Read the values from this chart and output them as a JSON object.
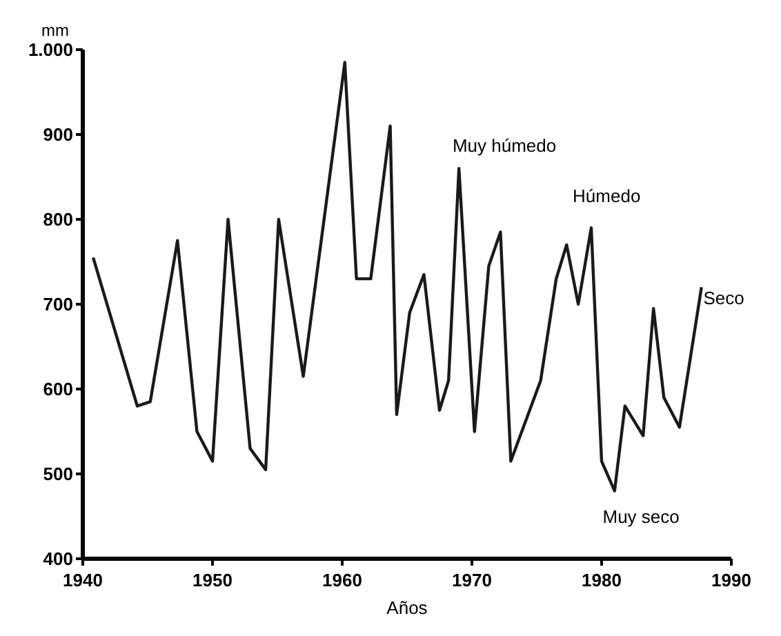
{
  "chart_data": {
    "type": "line",
    "xlabel": "Años",
    "ylabel": "mm",
    "x": [
      1940.8,
      1944.2,
      1945.2,
      1947.3,
      1948.8,
      1950,
      1951.2,
      1952.9,
      1954.1,
      1955.1,
      1957,
      1960.2,
      1961.1,
      1962.2,
      1963.7,
      1964.2,
      1965.2,
      1966.3,
      1967.5,
      1968.2,
      1969,
      1970.2,
      1971.3,
      1972.2,
      1973,
      1975.3,
      1976.5,
      1977.3,
      1978.2,
      1979.2,
      1980,
      1981,
      1981.8,
      1983.2,
      1984,
      1984.8,
      1986,
      1987.7
    ],
    "series": [
      {
        "color": "#1a1a1a",
        "values": [
          755,
          580,
          585,
          775,
          550,
          515,
          800,
          530,
          505,
          800,
          615,
          985,
          730,
          730,
          910,
          570,
          690,
          735,
          575,
          610,
          860,
          550,
          745,
          785,
          515,
          610,
          730,
          770,
          700,
          790,
          515,
          480,
          580,
          545,
          695,
          590,
          555,
          720
        ]
      }
    ],
    "xlim": [
      1940,
      1990
    ],
    "xticks": [
      1940,
      1950,
      1960,
      1970,
      1980,
      1990
    ],
    "ylim": [
      400,
      1000
    ],
    "yticks": [
      400,
      500,
      600,
      700,
      800,
      900,
      {
        "value": 1000,
        "label": "1.000"
      }
    ],
    "grid": false,
    "marker": "none",
    "line_style": "solid",
    "annotations": [
      "Muy húmedo",
      "Húmedo",
      "Seco",
      "Muy seco"
    ]
  }
}
